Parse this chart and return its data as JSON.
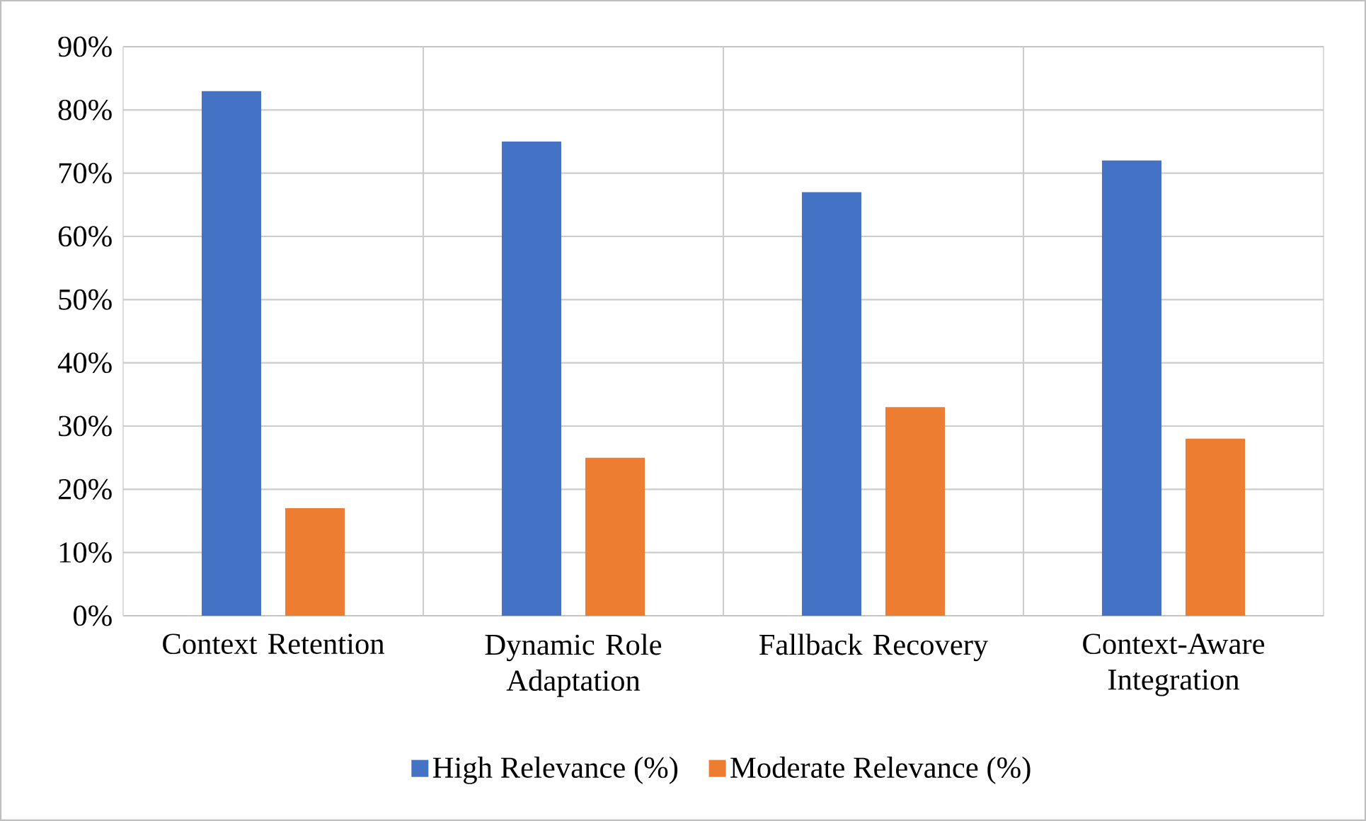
{
  "chart_data": {
    "type": "bar",
    "categories": [
      "Context Retention",
      "Dynamic Role Adaptation",
      "Fallback Recovery",
      "Context-Aware Integration"
    ],
    "series": [
      {
        "name": "High Relevance (%)",
        "color": "#4472c4",
        "values": [
          83,
          75,
          67,
          72
        ]
      },
      {
        "name": "Moderate Relevance (%)",
        "color": "#ed7d31",
        "values": [
          17,
          25,
          33,
          28
        ]
      }
    ],
    "ylim": [
      0,
      90
    ],
    "yticks": [
      {
        "value": 0,
        "label": "0%"
      },
      {
        "value": 10,
        "label": "10%"
      },
      {
        "value": 20,
        "label": "20%"
      },
      {
        "value": 30,
        "label": "30%"
      },
      {
        "value": 40,
        "label": "40%"
      },
      {
        "value": 50,
        "label": "50%"
      },
      {
        "value": 60,
        "label": "60%"
      },
      {
        "value": 70,
        "label": "70%"
      },
      {
        "value": 80,
        "label": "80%"
      },
      {
        "value": 90,
        "label": "90%"
      }
    ],
    "grid": true,
    "legend": "bottom"
  }
}
